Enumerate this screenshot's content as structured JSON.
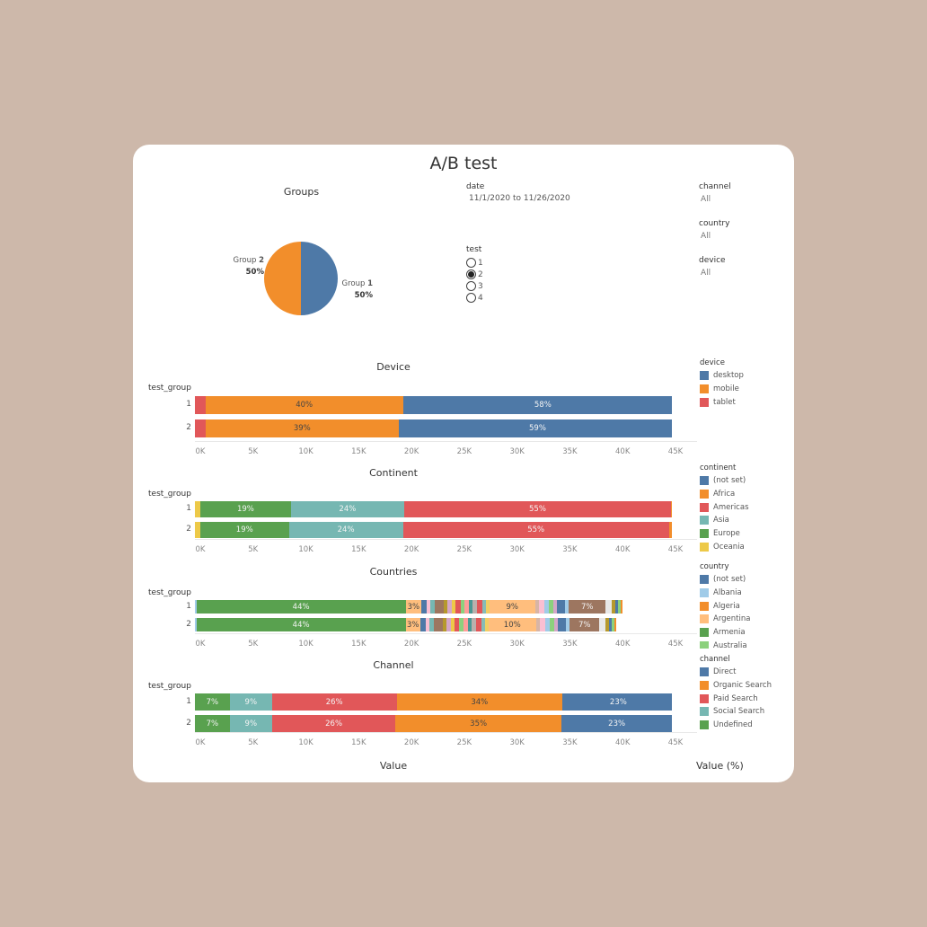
{
  "title": "A/B test",
  "groups_pie": {
    "title": "Groups",
    "slices": [
      {
        "label_prefix": "Group ",
        "label_num": "1",
        "pct": "50%",
        "value": 50,
        "color": "#4e79a7"
      },
      {
        "label_prefix": "Group ",
        "label_num": "2",
        "pct": "50%",
        "value": 50,
        "color": "#f28e2b"
      }
    ]
  },
  "filters": {
    "date": {
      "label": "date",
      "value": "11/1/2020 to 11/26/2020"
    },
    "test": {
      "label": "test",
      "options": [
        "1",
        "2",
        "3",
        "4"
      ],
      "selected": "2"
    },
    "channel": {
      "label": "channel",
      "value": "All"
    },
    "country": {
      "label": "country",
      "value": "All"
    },
    "device": {
      "label": "device",
      "value": "All"
    }
  },
  "row_axis_label": "test_group",
  "axis_ticks": [
    "0K",
    "5K",
    "10K",
    "15K",
    "20K",
    "25K",
    "30K",
    "35K",
    "40K",
    "45K"
  ],
  "footer": {
    "x_label": "Value",
    "legend_label": "Value (%)"
  },
  "chart_data": [
    {
      "type": "bar",
      "stacked": true,
      "orientation": "horizontal",
      "title": "Device",
      "xlim": [
        0,
        45000
      ],
      "categories": [
        "1",
        "2"
      ],
      "series": [
        {
          "name": "tablet",
          "color": "#e15759",
          "values": [
            1000,
            1000
          ]
        },
        {
          "name": "mobile",
          "color": "#f28e2b",
          "values": [
            18700,
            18300
          ],
          "labels": [
            "40%",
            "39%"
          ]
        },
        {
          "name": "desktop",
          "color": "#4e79a7",
          "values": [
            26500,
            26300
          ],
          "labels": [
            "58%",
            "59%"
          ]
        }
      ]
    },
    {
      "type": "bar",
      "stacked": true,
      "orientation": "horizontal",
      "title": "Continent",
      "xlim": [
        0,
        45000
      ],
      "categories": [
        "1",
        "2"
      ],
      "series": [
        {
          "name": "Oceania",
          "color": "#edc948",
          "values": [
            500,
            500
          ]
        },
        {
          "name": "Europe",
          "color": "#59a14f",
          "values": [
            8600,
            8400
          ],
          "labels": [
            "19%",
            "19%"
          ]
        },
        {
          "name": "Asia",
          "color": "#76b7b2",
          "values": [
            10700,
            10800
          ],
          "labels": [
            "24%",
            "24%"
          ]
        },
        {
          "name": "Americas",
          "color": "#e15759",
          "values": [
            25300,
            25200
          ],
          "labels": [
            "55%",
            "55%"
          ]
        },
        {
          "name": "Africa",
          "color": "#f28e2b",
          "values": [
            400,
            400
          ]
        }
      ]
    },
    {
      "type": "bar",
      "stacked": true,
      "orientation": "horizontal",
      "title": "Countries",
      "xlim": [
        0,
        45000
      ],
      "categories": [
        "1",
        "2"
      ],
      "series": [
        {
          "color": "#a0cbe8",
          "values": [
            150,
            150
          ]
        },
        {
          "color": "#59a14f",
          "values": [
            19800,
            19800
          ],
          "labels": [
            "44%",
            "44%"
          ]
        },
        {
          "color": "#ffbe7d",
          "values": [
            1500,
            1400
          ],
          "labels": [
            "3%",
            "3%"
          ]
        },
        {
          "color": "#4e79a7",
          "values": [
            500,
            500
          ]
        },
        {
          "color": "#fabfd2",
          "values": [
            350,
            350
          ]
        },
        {
          "color": "#76b7b2",
          "values": [
            400,
            400
          ]
        },
        {
          "color": "#9d7660",
          "values": [
            900,
            900
          ]
        },
        {
          "color": "#b6992d",
          "values": [
            300,
            300
          ]
        },
        {
          "color": "#d4a6c8",
          "values": [
            450,
            450
          ]
        },
        {
          "color": "#edc948",
          "values": [
            300,
            300
          ]
        },
        {
          "color": "#e15759",
          "values": [
            500,
            500
          ]
        },
        {
          "color": "#8cd17d",
          "values": [
            350,
            350
          ]
        },
        {
          "color": "#ff9d9a",
          "values": [
            450,
            450
          ]
        },
        {
          "color": "#499894",
          "values": [
            350,
            350
          ]
        },
        {
          "color": "#bab0ac",
          "values": [
            400,
            400
          ]
        },
        {
          "color": "#e15759",
          "values": [
            500,
            500
          ]
        },
        {
          "color": "#86bcb6",
          "values": [
            400,
            400
          ]
        },
        {
          "color": "#f1ce63",
          "values": [
            300,
            300
          ]
        },
        {
          "color": "#ffbe7d",
          "values": [
            4300,
            4500
          ],
          "labels": [
            "9%",
            "10%"
          ]
        },
        {
          "color": "#d7b5a6",
          "values": [
            400,
            400
          ]
        },
        {
          "color": "#fabfd2",
          "values": [
            500,
            500
          ]
        },
        {
          "color": "#a0cbe8",
          "values": [
            400,
            400
          ]
        },
        {
          "color": "#8cd17d",
          "values": [
            450,
            450
          ]
        },
        {
          "color": "#d4a6c8",
          "values": [
            300,
            300
          ]
        },
        {
          "color": "#4e79a7",
          "values": [
            800,
            800
          ]
        },
        {
          "color": "#a0cbe8",
          "values": [
            350,
            350
          ]
        },
        {
          "color": "#9d7660",
          "values": [
            3500,
            2800
          ],
          "labels": [
            "7%",
            "7%"
          ]
        },
        {
          "color": "#e8e8e8",
          "values": [
            600,
            600
          ]
        },
        {
          "color": "#b6992d",
          "values": [
            300,
            300
          ]
        },
        {
          "color": "#4e79a7",
          "values": [
            300,
            300
          ]
        },
        {
          "color": "#8cd17d",
          "values": [
            250,
            250
          ]
        },
        {
          "color": "#f28e2b",
          "values": [
            150,
            150
          ]
        }
      ]
    },
    {
      "type": "bar",
      "stacked": true,
      "orientation": "horizontal",
      "title": "Channel",
      "xlim": [
        0,
        45000
      ],
      "categories": [
        "1",
        "2"
      ],
      "series": [
        {
          "name": "Undefined",
          "color": "#59a14f",
          "values": [
            3300,
            3300
          ],
          "labels": [
            "7%",
            "7%"
          ]
        },
        {
          "name": "Social Search",
          "color": "#76b7b2",
          "values": [
            4000,
            4000
          ],
          "labels": [
            "9%",
            "9%"
          ]
        },
        {
          "name": "Paid Search",
          "color": "#e15759",
          "values": [
            11800,
            11700
          ],
          "labels": [
            "26%",
            "26%"
          ]
        },
        {
          "name": "Organic Search",
          "color": "#f28e2b",
          "values": [
            15700,
            15700
          ],
          "labels": [
            "34%",
            "35%"
          ]
        },
        {
          "name": "Direct",
          "color": "#4e79a7",
          "values": [
            10600,
            10500
          ],
          "labels": [
            "23%",
            "23%"
          ]
        }
      ]
    }
  ],
  "legends": {
    "device": {
      "title": "device",
      "items": [
        {
          "label": "desktop",
          "color": "#4e79a7"
        },
        {
          "label": "mobile",
          "color": "#f28e2b"
        },
        {
          "label": "tablet",
          "color": "#e15759"
        }
      ]
    },
    "continent": {
      "title": "continent",
      "items": [
        {
          "label": "(not set)",
          "color": "#4e79a7"
        },
        {
          "label": "Africa",
          "color": "#f28e2b"
        },
        {
          "label": "Americas",
          "color": "#e15759"
        },
        {
          "label": "Asia",
          "color": "#76b7b2"
        },
        {
          "label": "Europe",
          "color": "#59a14f"
        },
        {
          "label": "Oceania",
          "color": "#edc948"
        }
      ]
    },
    "country": {
      "title": "country",
      "items": [
        {
          "label": "(not set)",
          "color": "#4e79a7"
        },
        {
          "label": "Albania",
          "color": "#a0cbe8"
        },
        {
          "label": "Algeria",
          "color": "#f28e2b"
        },
        {
          "label": "Argentina",
          "color": "#ffbe7d"
        },
        {
          "label": "Armenia",
          "color": "#59a14f"
        },
        {
          "label": "Australia",
          "color": "#8cd17d"
        }
      ]
    },
    "channel": {
      "title": "channel",
      "items": [
        {
          "label": "Direct",
          "color": "#4e79a7"
        },
        {
          "label": "Organic Search",
          "color": "#f28e2b"
        },
        {
          "label": "Paid Search",
          "color": "#e15759"
        },
        {
          "label": "Social Search",
          "color": "#76b7b2"
        },
        {
          "label": "Undefined",
          "color": "#59a14f"
        }
      ]
    }
  }
}
